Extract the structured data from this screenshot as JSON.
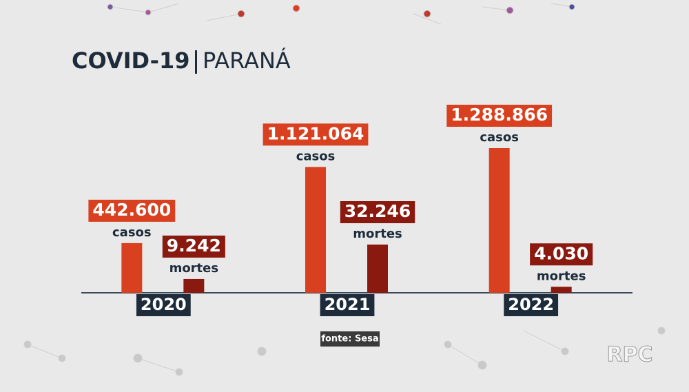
{
  "chart_data": {
    "type": "bar",
    "title": "COVID-19",
    "subtitle": "PARANÁ",
    "categories": [
      "2020",
      "2021",
      "2022"
    ],
    "series": [
      {
        "name": "casos",
        "color": "#d9401f",
        "values": [
          442600,
          1121064,
          1288866
        ],
        "value_labels": [
          "442.600",
          "1.121.064",
          "1.288.866"
        ]
      },
      {
        "name": "mortes",
        "color": "#8a1a0f",
        "values": [
          9242,
          32246,
          4030
        ],
        "value_labels": [
          "9.242",
          "32.246",
          "4.030"
        ]
      }
    ],
    "source": "fonte: Sesa",
    "logo": "RPC"
  }
}
